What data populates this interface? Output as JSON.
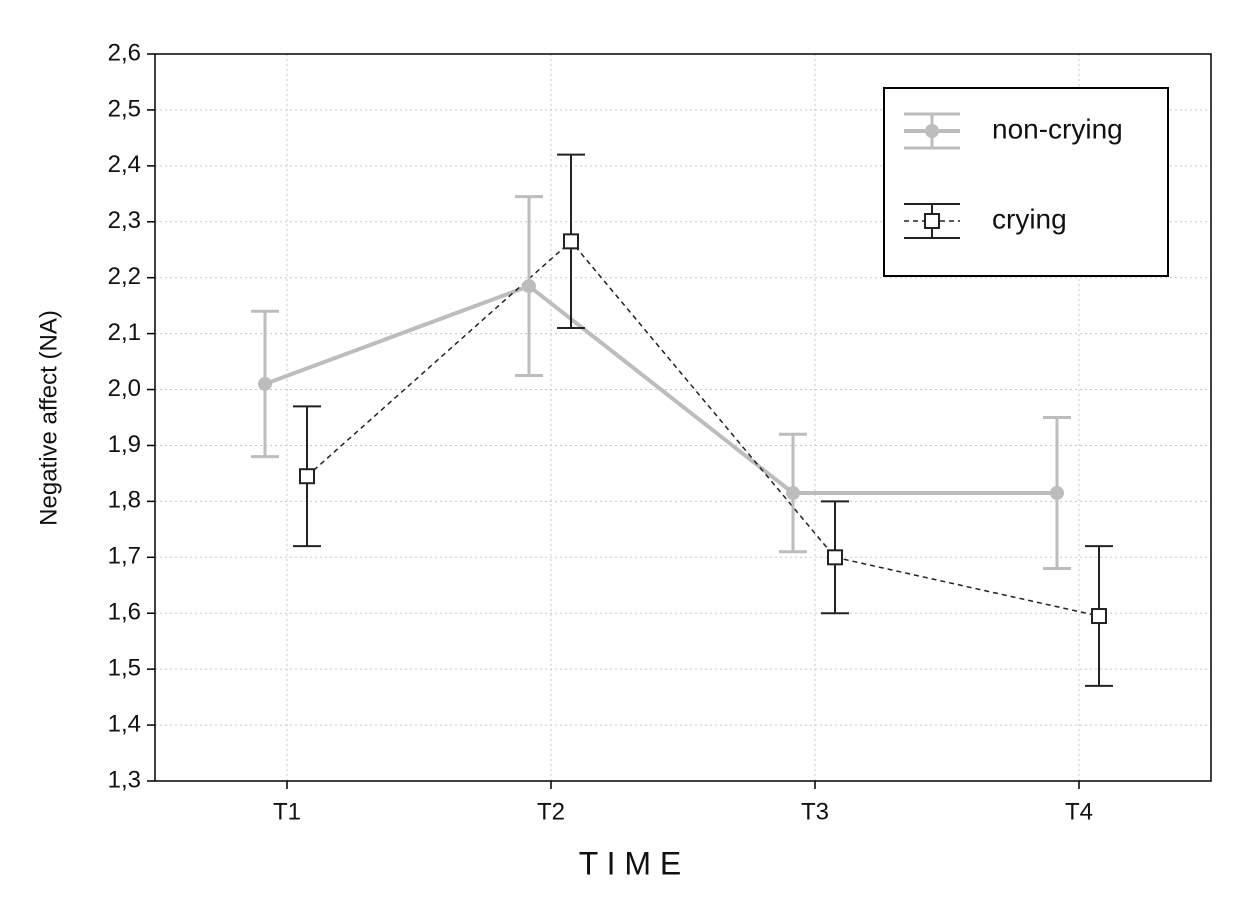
{
  "chart_data": {
    "type": "line",
    "x_label": "T I M E",
    "y_label": "Negative affect (NA)",
    "categories": [
      "T1",
      "T2",
      "T3",
      "T4"
    ],
    "series": [
      {
        "name": "non-crying",
        "color": "#bdbdbd",
        "linestyle": "solid",
        "marker": "circle",
        "values": [
          2.01,
          2.185,
          1.815,
          1.815
        ],
        "errors": [
          0.13,
          0.16,
          0.105,
          0.135
        ]
      },
      {
        "name": "crying",
        "color": "#222222",
        "linestyle": "dashed",
        "marker": "square",
        "values": [
          1.845,
          2.265,
          1.7,
          1.595
        ],
        "errors": [
          0.125,
          0.155,
          0.1,
          0.125
        ]
      }
    ],
    "ylim": [
      1.3,
      2.6
    ],
    "yticks": [
      {
        "value": 1.3,
        "label": "1,3"
      },
      {
        "value": 1.4,
        "label": "1,4"
      },
      {
        "value": 1.5,
        "label": "1,5"
      },
      {
        "value": 1.6,
        "label": "1,6"
      },
      {
        "value": 1.7,
        "label": "1,7"
      },
      {
        "value": 1.8,
        "label": "1,8"
      },
      {
        "value": 1.9,
        "label": "1,9"
      },
      {
        "value": 2.0,
        "label": "2,0"
      },
      {
        "value": 2.1,
        "label": "2,1"
      },
      {
        "value": 2.2,
        "label": "2,2"
      },
      {
        "value": 2.3,
        "label": "2,3"
      },
      {
        "value": 2.4,
        "label": "2,4"
      },
      {
        "value": 2.5,
        "label": "2,5"
      },
      {
        "value": 2.6,
        "label": "2,6"
      }
    ],
    "grid": true,
    "legend": "upper right"
  }
}
